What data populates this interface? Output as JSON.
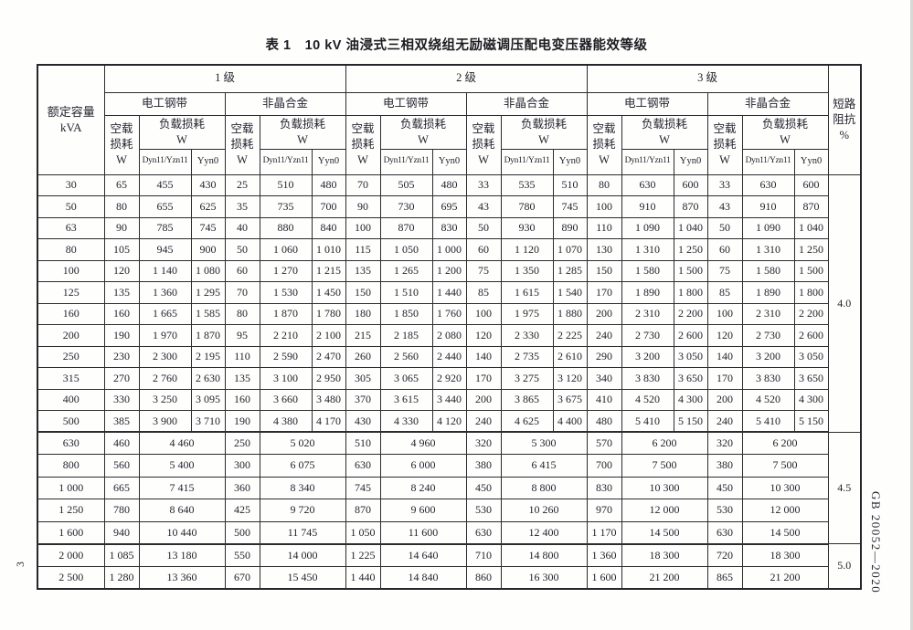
{
  "page": {
    "title": "表 1　10 kV 油浸式三相双绕组无励磁调压配电变压器能效等级",
    "side_label": "GB 20052—2020",
    "page_number": "3"
  },
  "table": {
    "headers": {
      "capacity_lines": [
        "额定容量",
        "kVA"
      ],
      "grades": [
        "1 级",
        "2 级",
        "3 级"
      ],
      "materials": [
        "电工钢带",
        "非晶合金"
      ],
      "no_load_lines": [
        "空载",
        "损耗",
        "W"
      ],
      "load_lines": [
        "负载损耗",
        "W"
      ],
      "winding_1": "Dyn11/Yzn11",
      "winding_2": "Yyn0",
      "impedance_lines": [
        "短路",
        "阻抗",
        "%"
      ]
    },
    "rows_detailed": [
      {
        "capacity": "30",
        "values": [
          "65",
          "455",
          "430",
          "25",
          "510",
          "480",
          "70",
          "505",
          "480",
          "33",
          "535",
          "510",
          "80",
          "630",
          "600",
          "33",
          "630",
          "600"
        ]
      },
      {
        "capacity": "50",
        "values": [
          "80",
          "655",
          "625",
          "35",
          "735",
          "700",
          "90",
          "730",
          "695",
          "43",
          "780",
          "745",
          "100",
          "910",
          "870",
          "43",
          "910",
          "870"
        ]
      },
      {
        "capacity": "63",
        "values": [
          "90",
          "785",
          "745",
          "40",
          "880",
          "840",
          "100",
          "870",
          "830",
          "50",
          "930",
          "890",
          "110",
          "1 090",
          "1 040",
          "50",
          "1 090",
          "1 040"
        ]
      },
      {
        "capacity": "80",
        "values": [
          "105",
          "945",
          "900",
          "50",
          "1 060",
          "1 010",
          "115",
          "1 050",
          "1 000",
          "60",
          "1 120",
          "1 070",
          "130",
          "1 310",
          "1 250",
          "60",
          "1 310",
          "1 250"
        ]
      },
      {
        "capacity": "100",
        "values": [
          "120",
          "1 140",
          "1 080",
          "60",
          "1 270",
          "1 215",
          "135",
          "1 265",
          "1 200",
          "75",
          "1 350",
          "1 285",
          "150",
          "1 580",
          "1 500",
          "75",
          "1 580",
          "1 500"
        ]
      },
      {
        "capacity": "125",
        "values": [
          "135",
          "1 360",
          "1 295",
          "70",
          "1 530",
          "1 450",
          "150",
          "1 510",
          "1 440",
          "85",
          "1 615",
          "1 540",
          "170",
          "1 890",
          "1 800",
          "85",
          "1 890",
          "1 800"
        ]
      },
      {
        "capacity": "160",
        "values": [
          "160",
          "1 665",
          "1 585",
          "80",
          "1 870",
          "1 780",
          "180",
          "1 850",
          "1 760",
          "100",
          "1 975",
          "1 880",
          "200",
          "2 310",
          "2 200",
          "100",
          "2 310",
          "2 200"
        ]
      },
      {
        "capacity": "200",
        "values": [
          "190",
          "1 970",
          "1 870",
          "95",
          "2 210",
          "2 100",
          "215",
          "2 185",
          "2 080",
          "120",
          "2 330",
          "2 225",
          "240",
          "2 730",
          "2 600",
          "120",
          "2 730",
          "2 600"
        ]
      },
      {
        "capacity": "250",
        "values": [
          "230",
          "2 300",
          "2 195",
          "110",
          "2 590",
          "2 470",
          "260",
          "2 560",
          "2 440",
          "140",
          "2 735",
          "2 610",
          "290",
          "3 200",
          "3 050",
          "140",
          "3 200",
          "3 050"
        ]
      },
      {
        "capacity": "315",
        "values": [
          "270",
          "2 760",
          "2 630",
          "135",
          "3 100",
          "2 950",
          "305",
          "3 065",
          "2 920",
          "170",
          "3 275",
          "3 120",
          "340",
          "3 830",
          "3 650",
          "170",
          "3 830",
          "3 650"
        ]
      },
      {
        "capacity": "400",
        "values": [
          "330",
          "3 250",
          "3 095",
          "160",
          "3 660",
          "3 480",
          "370",
          "3 615",
          "3 440",
          "200",
          "3 865",
          "3 675",
          "410",
          "4 520",
          "4 300",
          "200",
          "4 520",
          "4 300"
        ]
      },
      {
        "capacity": "500",
        "values": [
          "385",
          "3 900",
          "3 710",
          "190",
          "4 380",
          "4 170",
          "430",
          "4 330",
          "4 120",
          "240",
          "4 625",
          "4 400",
          "480",
          "5 410",
          "5 150",
          "240",
          "5 410",
          "5 150"
        ]
      }
    ],
    "rows_merged": [
      {
        "capacity": "630",
        "values": [
          "460",
          "4 460",
          "250",
          "5 020",
          "510",
          "4 960",
          "320",
          "5 300",
          "570",
          "6 200",
          "320",
          "6 200"
        ]
      },
      {
        "capacity": "800",
        "values": [
          "560",
          "5 400",
          "300",
          "6 075",
          "630",
          "6 000",
          "380",
          "6 415",
          "700",
          "7 500",
          "380",
          "7 500"
        ]
      },
      {
        "capacity": "1 000",
        "values": [
          "665",
          "7 415",
          "360",
          "8 340",
          "745",
          "8 240",
          "450",
          "8 800",
          "830",
          "10 300",
          "450",
          "10 300"
        ]
      },
      {
        "capacity": "1 250",
        "values": [
          "780",
          "8 640",
          "425",
          "9 720",
          "870",
          "9 600",
          "530",
          "10 260",
          "970",
          "12 000",
          "530",
          "12 000"
        ]
      },
      {
        "capacity": "1 600",
        "values": [
          "940",
          "10 440",
          "500",
          "11 745",
          "1 050",
          "11 600",
          "630",
          "12 400",
          "1 170",
          "14 500",
          "630",
          "14 500"
        ]
      },
      {
        "capacity": "2 000",
        "values": [
          "1 085",
          "13 180",
          "550",
          "14 000",
          "1 225",
          "14 640",
          "710",
          "14 800",
          "1 360",
          "18 300",
          "720",
          "18 300"
        ]
      },
      {
        "capacity": "2 500",
        "values": [
          "1 280",
          "13 360",
          "670",
          "15 450",
          "1 440",
          "14 840",
          "860",
          "16 300",
          "1 600",
          "21 200",
          "865",
          "21 200"
        ]
      }
    ],
    "impedance_cells": [
      {
        "value": "4.0",
        "span": 12
      },
      {
        "value": "4.5",
        "span": 5
      },
      {
        "value": "5.0",
        "span": 2
      }
    ]
  }
}
